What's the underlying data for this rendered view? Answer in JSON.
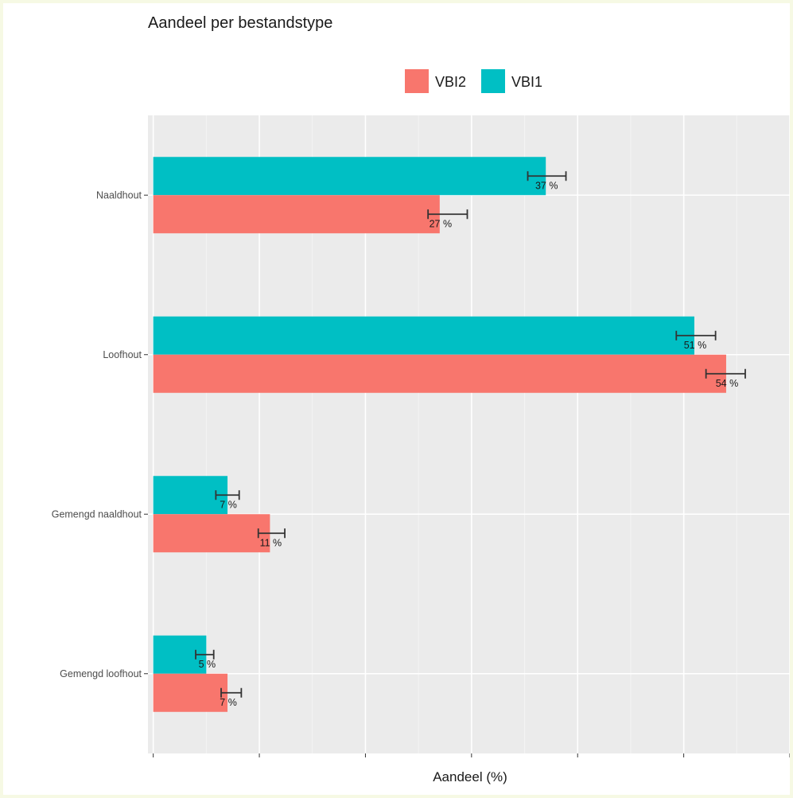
{
  "chart_data": {
    "type": "bar",
    "orientation": "horizontal",
    "title": "Aandeel per bestandstype",
    "xlabel": "Aandeel (%)",
    "ylabel": "",
    "xlim": [
      -0.5,
      60
    ],
    "x_ticks": [
      0,
      10,
      20,
      30,
      40,
      50,
      60
    ],
    "grid": true,
    "legend_position": "top",
    "legend": [
      {
        "name": "VBI2",
        "color": "#f8766d"
      },
      {
        "name": "VBI1",
        "color": "#00bfc4"
      }
    ],
    "categories": [
      "Naaldhout",
      "Loofhout",
      "Gemengd naaldhout",
      "Gemengd loofhout"
    ],
    "series": [
      {
        "name": "VBI1",
        "color": "#00bfc4",
        "values": [
          37,
          51,
          7,
          5
        ],
        "error_low": [
          35.3,
          49.3,
          5.9,
          4.0
        ],
        "error_high": [
          38.9,
          53.0,
          8.1,
          5.7
        ],
        "labels": [
          "37 %",
          "51 %",
          "7 %",
          "5 %"
        ]
      },
      {
        "name": "VBI2",
        "color": "#f8766d",
        "values": [
          27,
          54,
          11,
          7
        ],
        "error_low": [
          25.9,
          52.1,
          9.9,
          6.4
        ],
        "error_high": [
          29.6,
          55.8,
          12.4,
          8.3
        ],
        "labels": [
          "27 %",
          "54 %",
          "11 %",
          "7 %"
        ]
      }
    ]
  }
}
